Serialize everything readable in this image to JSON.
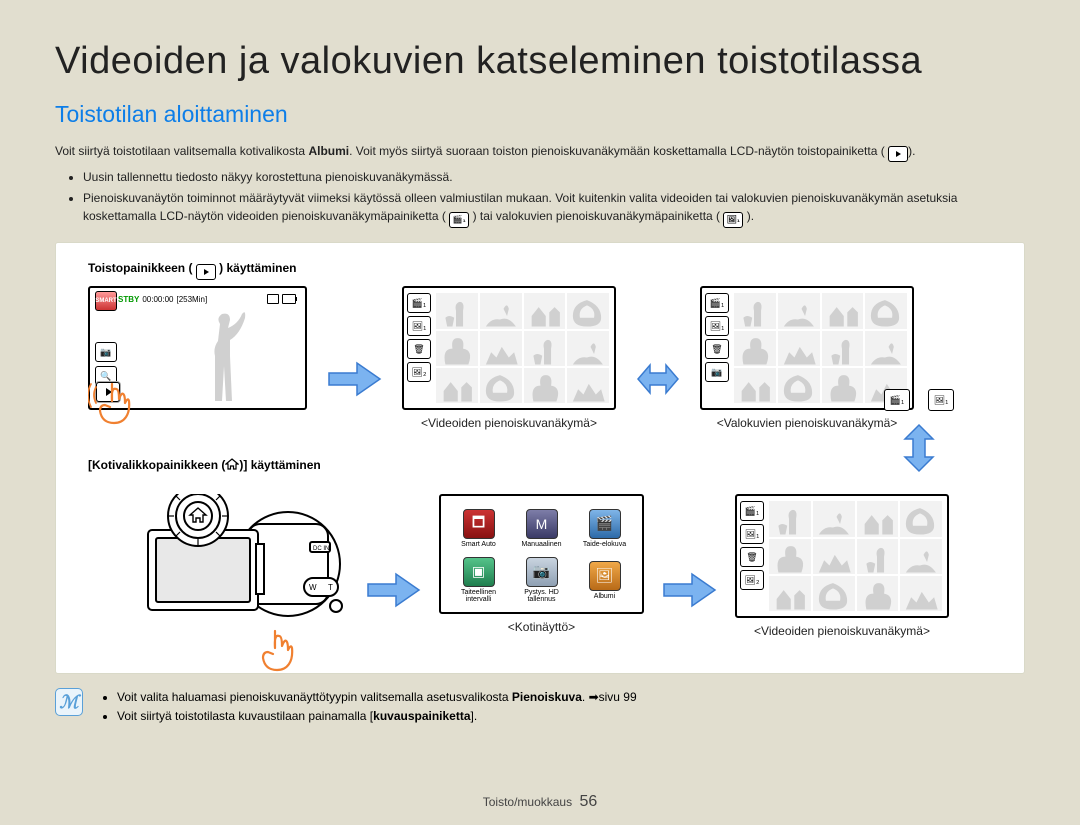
{
  "title": "Videoiden ja valokuvien katseleminen toistotilassa",
  "subtitle": "Toistotilan aloittaminen",
  "intro_before_bold": "Voit siirtyä toistotilaan valitsemalla kotivalikosta ",
  "intro_bold": "Albumi",
  "intro_after_bold": ". Voit myös siirtyä suoraan toiston pienoiskuvanäkymään koskettamalla LCD-näytön toistopainiketta (",
  "intro_end": ").",
  "bullets": {
    "b1": "Uusin tallennettu tiedosto näkyy korostettuna pienoiskuvanäkymässä.",
    "b2_a": "Pienoiskuvanäytön toiminnot määräytyvät viimeksi käytössä olleen valmiustilan mukaan. Voit kuitenkin valita videoiden tai valokuvien pienoiskuvanäkymän asetuksia koskettamalla LCD-näytön videoiden pienoiskuvanäkymäpainiketta (",
    "b2_b": ") tai valokuvien pienoiskuvanäkymäpainiketta (",
    "b2_c": ")."
  },
  "label_play_button": "Toistopainikkeen (",
  "label_play_button_suffix": ") käyttäminen",
  "label_home_button_prefix": "[Kotivalikkopainikkeen (",
  "label_home_button_suffix": ")] käyttäminen",
  "lcd": {
    "stby": "STBY",
    "time": "00:00:00",
    "remain": "[253Min]"
  },
  "captions": {
    "video_thumb": "<Videoiden pienoiskuvanäkymä>",
    "photo_thumb": "<Valokuvien pienoiskuvanäkymä>",
    "home_screen": "<Kotinäyttö>",
    "video_thumb2": "<Videoiden pienoiskuvanäkymä>"
  },
  "homescreen": {
    "apps": [
      {
        "label": "Smart Auto",
        "icon": "🗖",
        "bg": "linear-gradient(#c33,#811)"
      },
      {
        "label": "Manuaalinen",
        "icon": "M",
        "bg": "linear-gradient(#7d7da8,#3a3a66)"
      },
      {
        "label": "Taide-elokuva",
        "icon": "🎬",
        "bg": "linear-gradient(#7fb5e8,#2d6aa8)"
      },
      {
        "label": "Taiteellinen intervalli",
        "icon": "▣",
        "bg": "linear-gradient(#55c38a,#1f7e4e)"
      },
      {
        "label": "Pystys. HD tallennus",
        "icon": "📷",
        "bg": "linear-gradient(#c9d4e0,#8fa0b3)"
      },
      {
        "label": "Albumi",
        "icon": "🖼",
        "bg": "linear-gradient(#f0a848,#b86a18)"
      }
    ]
  },
  "note": {
    "n1_a": "Voit valita haluamasi pienoiskuvanäyttötyypin valitsemalla asetusvalikosta ",
    "n1_bold": "Pienoiskuva",
    "n1_b": ". ➡sivu 99",
    "n2_a": "Voit siirtyä toistotilasta kuvaustilaan painamalla [",
    "n2_bold": "kuvauspainiketta",
    "n2_b": "]."
  },
  "footer": {
    "section": "Toisto/muokkaus",
    "page": "56"
  },
  "colors": {
    "accent_blue": "#0d7ee8",
    "arrow_fill": "#7bb3f0",
    "arrow_stroke": "#3a7bd0",
    "finger_stroke": "#f08030",
    "bg": "#e1decf"
  }
}
